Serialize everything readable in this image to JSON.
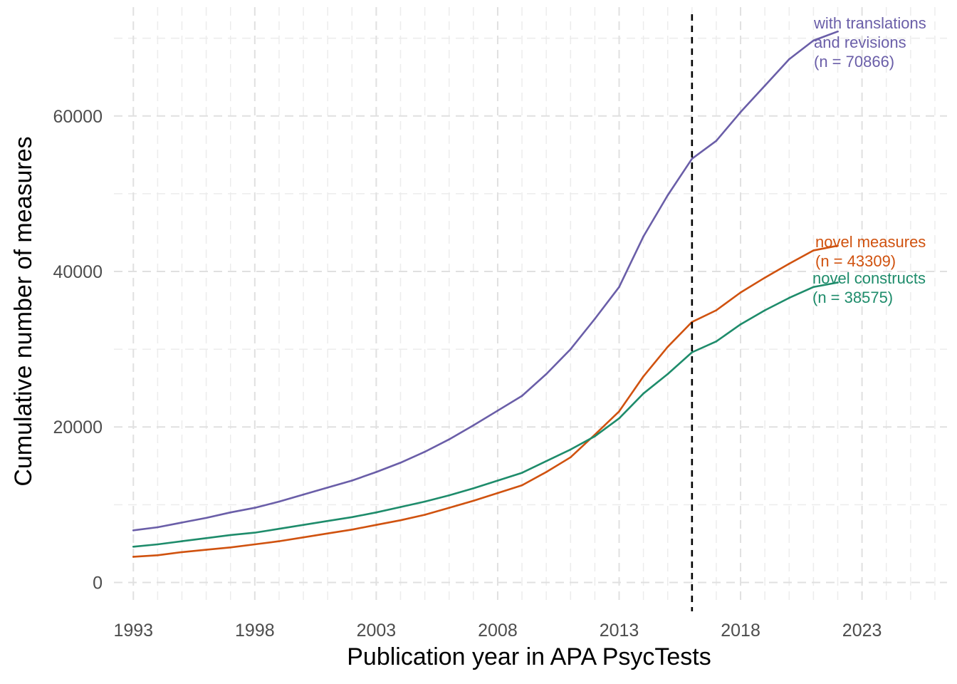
{
  "chart_data": {
    "type": "line",
    "xlabel": "Publication year in APA PsycTests",
    "ylabel": "Cumulative number of measures",
    "xlim": [
      1992.2,
      2026.5
    ],
    "ylim": [
      -2800,
      74000
    ],
    "x_ticks": [
      {
        "value": 1993,
        "label": "1993"
      },
      {
        "value": 1998,
        "label": "1998"
      },
      {
        "value": 2003,
        "label": "2003"
      },
      {
        "value": 2008,
        "label": "2008"
      },
      {
        "value": 2013,
        "label": "2013"
      },
      {
        "value": 2018,
        "label": "2018"
      },
      {
        "value": 2023,
        "label": "2023"
      }
    ],
    "y_ticks": [
      {
        "value": 0,
        "label": "0"
      },
      {
        "value": 20000,
        "label": "20000"
      },
      {
        "value": 40000,
        "label": "40000"
      },
      {
        "value": 60000,
        "label": "60000"
      }
    ],
    "grid": true,
    "vline": {
      "x": 2016,
      "style": "dashed",
      "color": "#000000"
    },
    "x": [
      1993,
      1994,
      1995,
      1996,
      1997,
      1998,
      1999,
      2000,
      2001,
      2002,
      2003,
      2004,
      2005,
      2006,
      2007,
      2008,
      2009,
      2010,
      2011,
      2012,
      2013,
      2014,
      2015,
      2016,
      2017,
      2018,
      2019,
      2020,
      2021,
      2022
    ],
    "series": [
      {
        "key": "translations",
        "color": "#6a5ea8",
        "label_lines": [
          "with translations",
          "and revisions",
          "(n = 70866)"
        ],
        "values": [
          6700,
          7100,
          7700,
          8300,
          9000,
          9600,
          10400,
          11300,
          12200,
          13100,
          14200,
          15400,
          16800,
          18400,
          20200,
          22100,
          24000,
          26800,
          30000,
          33900,
          38000,
          44500,
          49800,
          54500,
          56800,
          60500,
          63900,
          67300,
          69700,
          70866
        ]
      },
      {
        "key": "novel_measures",
        "color": "#d0520f",
        "label_lines": [
          "novel measures",
          "(n = 43309)"
        ],
        "values": [
          3300,
          3500,
          3900,
          4200,
          4500,
          4900,
          5300,
          5800,
          6300,
          6800,
          7400,
          8000,
          8700,
          9600,
          10500,
          11500,
          12500,
          14200,
          16100,
          19000,
          22000,
          26500,
          30300,
          33500,
          35000,
          37300,
          39200,
          41000,
          42700,
          43309
        ]
      },
      {
        "key": "novel_constructs",
        "color": "#1e8c6b",
        "label_lines": [
          "novel constructs",
          "(n = 38575)"
        ],
        "values": [
          4600,
          4900,
          5300,
          5700,
          6100,
          6400,
          6900,
          7400,
          7900,
          8400,
          9000,
          9700,
          10400,
          11200,
          12100,
          13100,
          14100,
          15600,
          17100,
          18800,
          21100,
          24300,
          26800,
          29600,
          31000,
          33200,
          35000,
          36600,
          38000,
          38575
        ]
      }
    ]
  }
}
